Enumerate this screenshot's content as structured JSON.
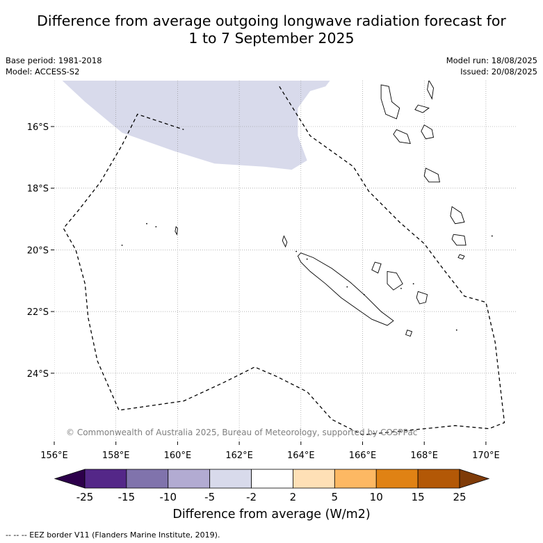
{
  "title_line1": "Difference from average outgoing longwave radiation forecast for",
  "title_line2": "1 to 7 September 2025",
  "base_period": "Base period: 1981-2018",
  "model": "Model: ACCESS-S2",
  "model_run": "Model run: 18/08/2025",
  "issued": "Issued: 20/08/2025",
  "copyright": "© Commonwealth of Australia 2025, Bureau of Meteorology, supported by COSPPac",
  "lon_ticks": [
    "156°E",
    "158°E",
    "160°E",
    "162°E",
    "164°E",
    "166°E",
    "168°E",
    "170°E"
  ],
  "lat_ticks": [
    "16°S",
    "18°S",
    "20°S",
    "22°S",
    "24°S"
  ],
  "colorbar": {
    "title": "Difference from average (W/m2)",
    "labels": [
      "-25",
      "-15",
      "-10",
      "-5",
      "-2",
      "2",
      "5",
      "10",
      "15",
      "25"
    ],
    "colors": [
      "#2d004b",
      "#542788",
      "#8073ac",
      "#b2abd2",
      "#d8daeb",
      "#ffffff",
      "#fee0b6",
      "#fdb863",
      "#e08214",
      "#b35806",
      "#7f3b08"
    ]
  },
  "footer": "--  --  -- EEZ border V11 (Flanders Marine Institute, 2019).",
  "map": {
    "extent": {
      "lon": [
        156.0,
        171.0
      ],
      "lat": [
        -14.5,
        -26.0
      ]
    },
    "anomaly_region": {
      "value_range": "-5 to -2",
      "polygon": [
        [
          156.25,
          -14.5
        ],
        [
          164.95,
          -14.5
        ],
        [
          164.8,
          -14.7
        ],
        [
          164.3,
          -14.85
        ],
        [
          163.9,
          -15.4
        ],
        [
          163.9,
          -16.3
        ],
        [
          164.2,
          -17.1
        ],
        [
          163.7,
          -17.4
        ],
        [
          162.8,
          -17.3
        ],
        [
          161.2,
          -17.2
        ],
        [
          159.9,
          -16.8
        ],
        [
          158.2,
          -16.2
        ],
        [
          157.0,
          -15.2
        ]
      ]
    },
    "eez_border": [
      [
        163.3,
        -14.7
      ],
      [
        164.3,
        -16.3
      ],
      [
        165.7,
        -17.3
      ],
      [
        166.2,
        -18.1
      ],
      [
        167.2,
        -19.1
      ],
      [
        168.0,
        -19.8
      ],
      [
        168.6,
        -20.6
      ],
      [
        169.3,
        -21.5
      ],
      [
        170.0,
        -21.7
      ],
      [
        170.3,
        -23.0
      ],
      [
        170.6,
        -25.6
      ],
      [
        170.1,
        -25.8
      ],
      [
        169.0,
        -25.7
      ],
      [
        166.0,
        -26.0
      ],
      [
        165.0,
        -25.5
      ],
      [
        164.2,
        -24.6
      ],
      [
        163.2,
        -24.1
      ],
      [
        162.5,
        -23.8
      ],
      [
        161.5,
        -24.3
      ],
      [
        160.2,
        -24.9
      ],
      [
        158.8,
        -25.1
      ],
      [
        158.1,
        -25.2
      ],
      [
        157.4,
        -23.6
      ],
      [
        157.1,
        -22.2
      ],
      [
        157.0,
        -21.1
      ],
      [
        156.7,
        -20.0
      ],
      [
        156.3,
        -19.3
      ],
      [
        156.8,
        -18.7
      ],
      [
        157.5,
        -17.8
      ],
      [
        158.2,
        -16.6
      ],
      [
        158.7,
        -15.6
      ],
      [
        160.2,
        -16.1
      ]
    ],
    "islands": {
      "new_caledonia": [
        [
          164.0,
          -20.1
        ],
        [
          164.4,
          -20.25
        ],
        [
          165.0,
          -20.6
        ],
        [
          165.6,
          -21.05
        ],
        [
          166.1,
          -21.5
        ],
        [
          166.6,
          -22.0
        ],
        [
          167.0,
          -22.3
        ],
        [
          166.8,
          -22.45
        ],
        [
          166.3,
          -22.25
        ],
        [
          165.8,
          -21.9
        ],
        [
          165.3,
          -21.55
        ],
        [
          164.8,
          -21.1
        ],
        [
          164.3,
          -20.7
        ],
        [
          164.0,
          -20.4
        ],
        [
          163.9,
          -20.2
        ]
      ],
      "vanuatu": [
        [
          [
            166.6,
            -14.65
          ],
          [
            166.85,
            -14.7
          ],
          [
            166.95,
            -15.2
          ],
          [
            167.2,
            -15.4
          ],
          [
            167.1,
            -15.75
          ],
          [
            166.75,
            -15.6
          ],
          [
            166.6,
            -15.1
          ]
        ],
        [
          [
            167.1,
            -16.1
          ],
          [
            167.45,
            -16.25
          ],
          [
            167.55,
            -16.55
          ],
          [
            167.2,
            -16.5
          ],
          [
            167.0,
            -16.25
          ]
        ],
        [
          [
            168.0,
            -15.95
          ],
          [
            168.25,
            -16.1
          ],
          [
            168.3,
            -16.35
          ],
          [
            168.05,
            -16.4
          ],
          [
            167.9,
            -16.15
          ]
        ],
        [
          [
            168.05,
            -17.35
          ],
          [
            168.45,
            -17.55
          ],
          [
            168.5,
            -17.8
          ],
          [
            168.15,
            -17.8
          ],
          [
            168.0,
            -17.6
          ]
        ],
        [
          [
            168.9,
            -18.6
          ],
          [
            169.2,
            -18.8
          ],
          [
            169.3,
            -19.1
          ],
          [
            169.0,
            -19.15
          ],
          [
            168.85,
            -18.9
          ]
        ],
        [
          [
            168.95,
            -19.5
          ],
          [
            169.3,
            -19.55
          ],
          [
            169.35,
            -19.85
          ],
          [
            169.05,
            -19.85
          ],
          [
            168.9,
            -19.65
          ]
        ],
        [
          [
            167.8,
            -15.3
          ],
          [
            168.15,
            -15.4
          ],
          [
            167.95,
            -15.55
          ],
          [
            167.7,
            -15.45
          ]
        ],
        [
          [
            168.15,
            -14.5
          ],
          [
            168.3,
            -14.75
          ],
          [
            168.25,
            -15.1
          ],
          [
            168.1,
            -14.8
          ]
        ]
      ],
      "loyalty_islands": [
        [
          [
            166.8,
            -20.7
          ],
          [
            167.1,
            -20.75
          ],
          [
            167.3,
            -21.1
          ],
          [
            167.0,
            -21.3
          ],
          [
            166.8,
            -21.1
          ]
        ],
        [
          [
            167.8,
            -21.35
          ],
          [
            168.1,
            -21.45
          ],
          [
            168.05,
            -21.7
          ],
          [
            167.85,
            -21.75
          ],
          [
            167.75,
            -21.55
          ]
        ],
        [
          [
            166.4,
            -20.4
          ],
          [
            166.6,
            -20.45
          ],
          [
            166.5,
            -20.75
          ],
          [
            166.3,
            -20.65
          ]
        ]
      ],
      "small": [
        [
          [
            163.45,
            -19.55
          ],
          [
            163.55,
            -19.75
          ],
          [
            163.5,
            -19.9
          ],
          [
            163.4,
            -19.7
          ]
        ],
        [
          [
            167.45,
            -22.6
          ],
          [
            167.6,
            -22.65
          ],
          [
            167.55,
            -22.8
          ],
          [
            167.4,
            -22.75
          ]
        ],
        [
          [
            159.95,
            -19.25
          ],
          [
            160.0,
            -19.3
          ],
          [
            159.98,
            -19.5
          ],
          [
            159.92,
            -19.4
          ]
        ],
        [
          [
            169.15,
            -20.15
          ],
          [
            169.3,
            -20.2
          ],
          [
            169.25,
            -20.3
          ],
          [
            169.1,
            -20.25
          ]
        ]
      ],
      "dots": [
        [
          159.0,
          -19.15
        ],
        [
          159.3,
          -19.25
        ],
        [
          158.2,
          -19.85
        ],
        [
          163.85,
          -20.05
        ],
        [
          164.2,
          -20.3
        ],
        [
          165.5,
          -21.2
        ],
        [
          166.05,
          -21.45
        ],
        [
          169.05,
          -22.6
        ],
        [
          170.2,
          -19.55
        ],
        [
          167.65,
          -21.1
        ],
        [
          167.25,
          -21.25
        ]
      ]
    }
  }
}
